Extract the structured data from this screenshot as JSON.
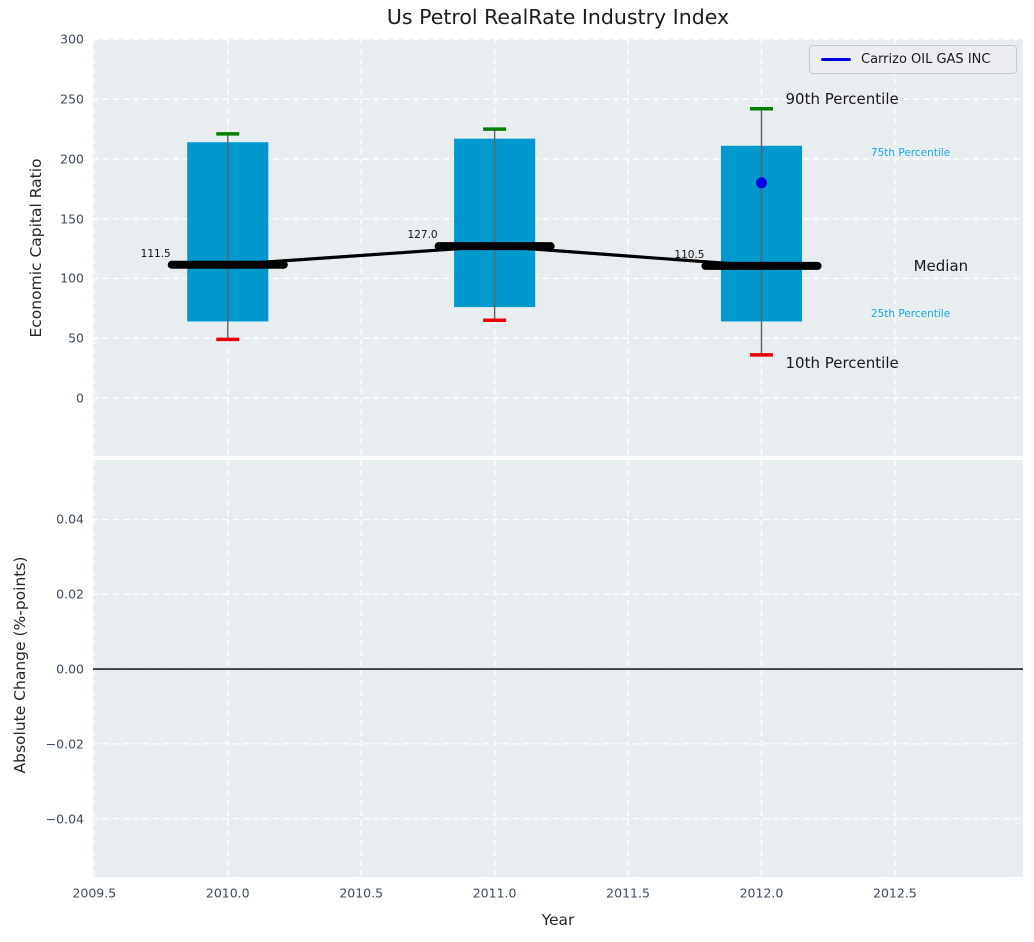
{
  "figure": {
    "title": "Us Petrol RealRate Industry Index",
    "axes_background": "#e8edf0",
    "grid_color": "#ffffff",
    "tick_color": "#3e4c5d"
  },
  "legend": {
    "label": "Carrizo OIL GAS INC",
    "line_color": "#0000dd"
  },
  "chart_data": {
    "type": "box",
    "title": "Us Petrol RealRate Industry Index",
    "xlabel": "Year",
    "xlim": [
      2009.495,
      2012.98
    ],
    "xticks": [
      {
        "v": 2009.5,
        "label": "2009.5"
      },
      {
        "v": 2010.0,
        "label": "2010.0"
      },
      {
        "v": 2010.5,
        "label": "2010.5"
      },
      {
        "v": 2011.0,
        "label": "2011.0"
      },
      {
        "v": 2011.5,
        "label": "2011.5"
      },
      {
        "v": 2012.0,
        "label": "2012.0"
      },
      {
        "v": 2012.5,
        "label": "2012.5"
      }
    ],
    "grid": true,
    "legend_position": "upper right",
    "subplots": [
      {
        "ylabel": "Economic Capital Ratio",
        "ylim": [
          -48.6,
          300.8
        ],
        "yticks": [
          {
            "v": 300,
            "label": "300"
          },
          {
            "v": 250,
            "label": "250"
          },
          {
            "v": 200,
            "label": "200"
          },
          {
            "v": 150,
            "label": "150"
          },
          {
            "v": 100,
            "label": "100"
          },
          {
            "v": 50,
            "label": "50"
          },
          {
            "v": 0,
            "label": "0"
          }
        ]
      },
      {
        "ylabel": "Absolute Change (%-points)",
        "ylim": [
          -0.0556,
          0.0559
        ],
        "yticks": [
          {
            "v": 0.04,
            "label": "0.04"
          },
          {
            "v": 0.02,
            "label": "0.02"
          },
          {
            "v": 0.0,
            "label": "0.00"
          },
          {
            "v": -0.02,
            "label": "−0.02"
          },
          {
            "v": -0.04,
            "label": "−0.04"
          }
        ],
        "zero_line": 0.0
      }
    ],
    "boxes": [
      {
        "year": 2010,
        "p10": 49,
        "p25": 64,
        "median": 111.5,
        "p75": 214,
        "p90": 221,
        "median_label": "111.5"
      },
      {
        "year": 2011,
        "p10": 65,
        "p25": 76,
        "median": 127.0,
        "p75": 217,
        "p90": 225,
        "median_label": "127.0"
      },
      {
        "year": 2012,
        "p10": 36,
        "p25": 64,
        "median": 110.5,
        "p75": 211,
        "p90": 242,
        "median_label": "110.5"
      }
    ],
    "company_point": {
      "name": "Carrizo OIL GAS INC",
      "year": 2012,
      "value": 180
    },
    "annotations": [
      {
        "text": "90th Percentile",
        "x": 2012.09,
        "y": 250,
        "color": "#1a1a1a",
        "size": 15
      },
      {
        "text": "75th Percentile",
        "x": 2012.41,
        "y": 205,
        "color": "#1da7d8",
        "size": 10.5
      },
      {
        "text": "Median",
        "x": 2012.57,
        "y": 110.5,
        "color": "#1a1a1a",
        "size": 15
      },
      {
        "text": "25th Percentile",
        "x": 2012.41,
        "y": 70,
        "color": "#1da7d8",
        "size": 10.5
      },
      {
        "text": "10th Percentile",
        "x": 2012.09,
        "y": 29,
        "color": "#1a1a1a",
        "size": 15
      }
    ],
    "colors": {
      "box_fill": "#0099cd",
      "whisker": "#606060",
      "cap_90": "#008000",
      "cap_10": "#e8000b",
      "median": "#000000",
      "company_point": "#0000e0",
      "zero_line": "#000000"
    }
  }
}
